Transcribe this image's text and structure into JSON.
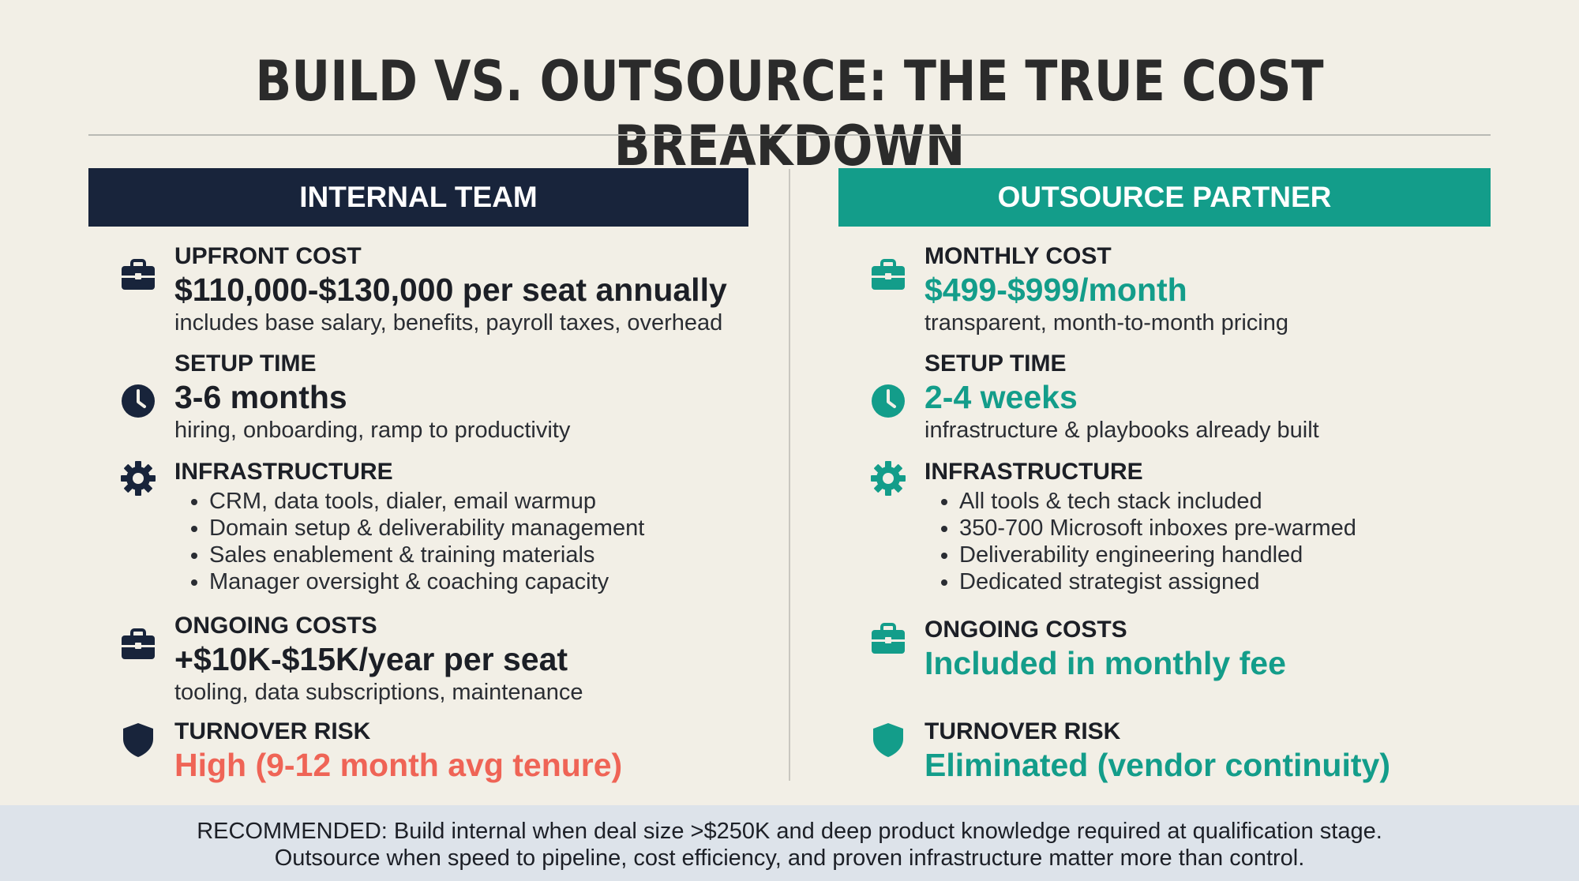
{
  "title": "BUILD VS. OUTSOURCE: THE TRUE COST BREAKDOWN",
  "colors": {
    "navy": "#18243b",
    "teal": "#139d8a",
    "coral": "#ef6456"
  },
  "internal": {
    "header": "INTERNAL TEAM",
    "upfront": {
      "icon": "briefcase-icon",
      "label": "UPFRONT COST",
      "value": "$110,000-$130,000 per seat annually",
      "note": "includes base salary, benefits, payroll taxes, overhead"
    },
    "setup": {
      "icon": "clock-icon",
      "label": "SETUP TIME",
      "value": "3-6 months",
      "note": "hiring, onboarding, ramp to productivity"
    },
    "infrastructure": {
      "icon": "gear-icon",
      "label": "INFRASTRUCTURE",
      "items": [
        "CRM, data tools, dialer, email warmup",
        "Domain setup & deliverability management",
        "Sales enablement & training materials",
        "Manager oversight & coaching capacity"
      ]
    },
    "ongoing": {
      "icon": "briefcase-icon",
      "label": "ONGOING COSTS",
      "value": "+$10K-$15K/year per seat",
      "note": "tooling, data subscriptions, maintenance"
    },
    "turnover": {
      "icon": "shield-icon",
      "label": "TURNOVER RISK",
      "value": "High (9-12 month avg tenure)"
    }
  },
  "outsource": {
    "header": "OUTSOURCE PARTNER",
    "monthly": {
      "icon": "briefcase-icon",
      "label": "MONTHLY COST",
      "value": "$499-$999/month",
      "note": "transparent, month-to-month pricing"
    },
    "setup": {
      "icon": "clock-icon",
      "label": "SETUP TIME",
      "value": "2-4 weeks",
      "note": "infrastructure & playbooks already built"
    },
    "infrastructure": {
      "icon": "gear-icon",
      "label": "INFRASTRUCTURE",
      "items": [
        "All tools & tech stack included",
        "350-700 Microsoft inboxes pre-warmed",
        "Deliverability engineering handled",
        "Dedicated strategist assigned"
      ]
    },
    "ongoing": {
      "icon": "briefcase-icon",
      "label": "ONGOING COSTS",
      "value": "Included in monthly fee"
    },
    "turnover": {
      "icon": "shield-icon",
      "label": "TURNOVER RISK",
      "value": "Eliminated (vendor continuity)"
    }
  },
  "footer": {
    "line1": "RECOMMENDED: Build internal when deal size >$250K and deep product knowledge required at qualification stage.",
    "line2": "Outsource when speed to pipeline, cost efficiency, and proven infrastructure matter more than control."
  }
}
